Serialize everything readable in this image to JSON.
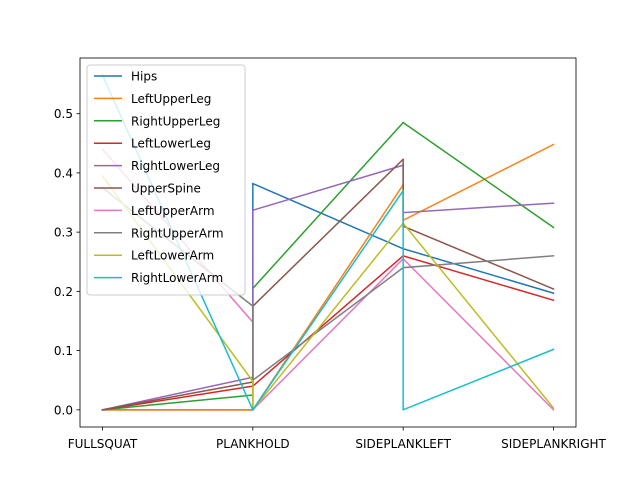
{
  "chart_data": {
    "type": "line",
    "title": "",
    "xlabel": "",
    "ylabel": "",
    "categories": [
      "FULLSQUAT",
      "PLANKHOLD",
      "SIDEPLANKLEFT",
      "SIDEPLANKRIGHT"
    ],
    "ylim": [
      -0.029,
      0.594
    ],
    "yticks": [
      0.0,
      0.1,
      0.2,
      0.3,
      0.4,
      0.5
    ],
    "ytick_labels": [
      "0.0",
      "0.1",
      "0.2",
      "0.3",
      "0.4",
      "0.5"
    ],
    "grid": false,
    "legend_position": "upper left",
    "series": [
      {
        "name": "Hips",
        "color": "#1f77b4",
        "segments": [
          [
            [
              0,
              0.0
            ],
            [
              1,
              0.0
            ]
          ],
          [
            [
              1,
              0.382
            ],
            [
              2,
              0.272
            ]
          ],
          [
            [
              2,
              0.272
            ],
            [
              3,
              0.197
            ]
          ]
        ]
      },
      {
        "name": "LeftUpperLeg",
        "color": "#ff7f0e",
        "segments": [
          [
            [
              0,
              0.0
            ],
            [
              1,
              0.0
            ]
          ],
          [
            [
              1,
              0.0
            ],
            [
              2,
              0.38
            ]
          ],
          [
            [
              2,
              0.32
            ],
            [
              3,
              0.448
            ]
          ]
        ]
      },
      {
        "name": "RightUpperLeg",
        "color": "#2ca02c",
        "segments": [
          [
            [
              0,
              0.0
            ],
            [
              1,
              0.025
            ]
          ],
          [
            [
              1,
              0.205
            ],
            [
              2,
              0.485
            ]
          ],
          [
            [
              2,
              0.485
            ],
            [
              3,
              0.308
            ]
          ]
        ]
      },
      {
        "name": "LeftLowerLeg",
        "color": "#d62728",
        "segments": [
          [
            [
              0,
              0.0
            ],
            [
              1,
              0.04
            ]
          ],
          [
            [
              1,
              0.04
            ],
            [
              2,
              0.26
            ]
          ],
          [
            [
              2,
              0.26
            ],
            [
              3,
              0.185
            ]
          ]
        ]
      },
      {
        "name": "RightLowerLeg",
        "color": "#9467bd",
        "segments": [
          [
            [
              0,
              0.0
            ],
            [
              1,
              0.055
            ]
          ],
          [
            [
              1,
              0.337
            ],
            [
              2,
              0.413
            ]
          ],
          [
            [
              2,
              0.333
            ],
            [
              3,
              0.349
            ]
          ]
        ]
      },
      {
        "name": "UpperSpine",
        "color": "#8c564b",
        "segments": [
          [
            [
              0,
              0.0
            ],
            [
              1,
              0.047
            ]
          ],
          [
            [
              1,
              0.175
            ],
            [
              2,
              0.423
            ]
          ],
          [
            [
              2,
              0.31
            ],
            [
              3,
              0.204
            ]
          ]
        ]
      },
      {
        "name": "LeftUpperArm",
        "color": "#e377c2",
        "segments": [
          [
            [
              0,
              0.44
            ],
            [
              1,
              0.148
            ]
          ],
          [
            [
              1,
              0.0
            ],
            [
              2,
              0.255
            ]
          ],
          [
            [
              2,
              0.255
            ],
            [
              3,
              0.0
            ]
          ]
        ]
      },
      {
        "name": "RightUpperArm",
        "color": "#7f7f7f",
        "segments": [
          [
            [
              0,
              0.375
            ],
            [
              1,
              0.175
            ]
          ],
          [
            [
              1,
              0.05
            ],
            [
              2,
              0.24
            ]
          ],
          [
            [
              2,
              0.24
            ],
            [
              3,
              0.26
            ]
          ]
        ]
      },
      {
        "name": "LeftLowerArm",
        "color": "#bcbd22",
        "segments": [
          [
            [
              0,
              0.395
            ],
            [
              1,
              0.048
            ]
          ],
          [
            [
              1,
              0.0
            ],
            [
              2,
              0.315
            ]
          ],
          [
            [
              2,
              0.315
            ],
            [
              3,
              0.003
            ]
          ]
        ]
      },
      {
        "name": "RightLowerArm",
        "color": "#17becf",
        "segments": [
          [
            [
              0,
              0.565
            ],
            [
              1,
              0.0
            ]
          ],
          [
            [
              1,
              0.0
            ],
            [
              2,
              0.37
            ]
          ],
          [
            [
              2,
              0.0
            ],
            [
              3,
              0.102
            ]
          ]
        ]
      }
    ]
  }
}
